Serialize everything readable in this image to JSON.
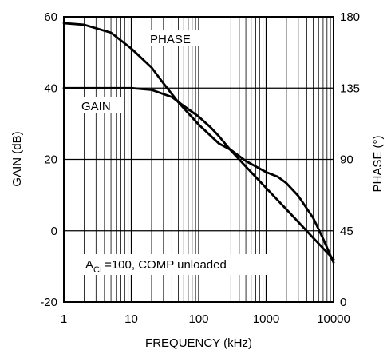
{
  "chart_data": {
    "type": "line",
    "xlabel": "FREQUENCY (kHz)",
    "ylabel": "GAIN (dB)",
    "y2label": "PHASE (°)",
    "xscale": "log",
    "xlim": [
      1,
      10000
    ],
    "ylim": [
      -20,
      60
    ],
    "y2lim": [
      0,
      180
    ],
    "grid": true,
    "xticks": [
      1,
      10,
      100,
      1000,
      10000
    ],
    "xtick_labels": [
      "1",
      "10",
      "100",
      "1000",
      "10000"
    ],
    "yticks": [
      60,
      40,
      20,
      0,
      -20
    ],
    "ytick_labels": [
      "60",
      "40",
      "20",
      "0",
      "-20"
    ],
    "y2ticks": [
      180,
      135,
      90,
      45,
      0
    ],
    "y2tick_labels": [
      "180",
      "135",
      "90",
      "45",
      "0"
    ],
    "series": [
      {
        "name": "GAIN",
        "axis": "left",
        "x": [
          1,
          2,
          5,
          10,
          20,
          40,
          60,
          100,
          150,
          200,
          300,
          500,
          1000,
          2000,
          5000,
          10000
        ],
        "y": [
          40,
          40,
          40,
          40,
          39.5,
          37.5,
          35,
          32,
          29,
          26.5,
          22.5,
          18,
          12,
          6,
          -2,
          -8
        ]
      },
      {
        "name": "PHASE",
        "axis": "right",
        "x": [
          1,
          2,
          5,
          10,
          20,
          30,
          50,
          100,
          200,
          300,
          500,
          1000,
          1500,
          2000,
          3000,
          5000,
          7000,
          10000
        ],
        "y": [
          176,
          175,
          170,
          160,
          148,
          138,
          126,
          112,
          100,
          96,
          89,
          82,
          79,
          75,
          67,
          53,
          40,
          25
        ]
      }
    ],
    "annotations": {
      "phase_label": "PHASE",
      "gain_label": "GAIN",
      "condition_prefix": "A",
      "condition_sub": "CL",
      "condition_rest": "=100, COMP unloaded"
    }
  }
}
